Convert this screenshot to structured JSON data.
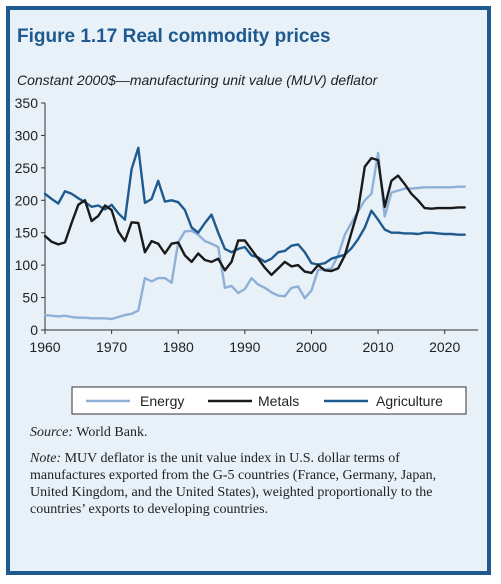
{
  "figure": {
    "title": "Figure 1.17  Real commodity prices",
    "subtitle": "Constant 2000$—manufacturing unit value (MUV) deflator",
    "source_label": "Source:",
    "source_text": " World Bank.",
    "note_label": "Note:",
    "note_text": " MUV deflator is the unit value index in U.S. dollar terms of manufactures exported from the G-5 countries (France, Germany, Japan, United Kingdom, and the United States), weighted proportionally to the countries’ exports to developing countries."
  },
  "chart_data": {
    "type": "line",
    "xlim": [
      1960,
      2025
    ],
    "ylim": [
      0,
      350
    ],
    "xticks": [
      1960,
      1970,
      1980,
      1990,
      2000,
      2010,
      2020
    ],
    "yticks": [
      0,
      50,
      100,
      150,
      200,
      250,
      300,
      350
    ],
    "grid": false,
    "legend": "bottom",
    "series": [
      {
        "name": "Energy",
        "color": "#8fb0d6",
        "points": [
          [
            1960,
            23
          ],
          [
            1961,
            22
          ],
          [
            1962,
            21
          ],
          [
            1963,
            22
          ],
          [
            1964,
            20
          ],
          [
            1965,
            19
          ],
          [
            1966,
            19
          ],
          [
            1967,
            18
          ],
          [
            1968,
            18
          ],
          [
            1969,
            18
          ],
          [
            1970,
            17
          ],
          [
            1971,
            20
          ],
          [
            1972,
            23
          ],
          [
            1973,
            25
          ],
          [
            1974,
            30
          ],
          [
            1975,
            80
          ],
          [
            1976,
            75
          ],
          [
            1977,
            80
          ],
          [
            1978,
            80
          ],
          [
            1979,
            73
          ],
          [
            1980,
            135
          ],
          [
            1981,
            152
          ],
          [
            1982,
            153
          ],
          [
            1983,
            147
          ],
          [
            1984,
            137
          ],
          [
            1985,
            133
          ],
          [
            1986,
            128
          ],
          [
            1987,
            65
          ],
          [
            1988,
            68
          ],
          [
            1989,
            57
          ],
          [
            1990,
            63
          ],
          [
            1991,
            80
          ],
          [
            1992,
            70
          ],
          [
            1993,
            65
          ],
          [
            1994,
            58
          ],
          [
            1995,
            53
          ],
          [
            1996,
            52
          ],
          [
            1997,
            65
          ],
          [
            1998,
            67
          ],
          [
            1999,
            49
          ],
          [
            2000,
            61
          ],
          [
            2001,
            93
          ],
          [
            2002,
            93
          ],
          [
            2003,
            95
          ],
          [
            2004,
            115
          ],
          [
            2005,
            147
          ],
          [
            2006,
            165
          ],
          [
            2007,
            183
          ],
          [
            2008,
            200
          ],
          [
            2009,
            210
          ],
          [
            2010,
            273
          ],
          [
            2011,
            175
          ],
          [
            2012,
            212
          ],
          [
            2013,
            215
          ],
          [
            2014,
            218
          ],
          [
            2015,
            218
          ],
          [
            2016,
            219
          ],
          [
            2017,
            220
          ],
          [
            2018,
            220
          ],
          [
            2019,
            220
          ],
          [
            2020,
            220
          ],
          [
            2021,
            220
          ],
          [
            2022,
            221
          ],
          [
            2023,
            221
          ]
        ]
      },
      {
        "name": "Metals",
        "color": "#1a1a1a",
        "points": [
          [
            1960,
            145
          ],
          [
            1961,
            136
          ],
          [
            1962,
            132
          ],
          [
            1963,
            135
          ],
          [
            1964,
            165
          ],
          [
            1965,
            193
          ],
          [
            1966,
            200
          ],
          [
            1967,
            168
          ],
          [
            1968,
            176
          ],
          [
            1969,
            192
          ],
          [
            1970,
            185
          ],
          [
            1971,
            152
          ],
          [
            1972,
            137
          ],
          [
            1973,
            166
          ],
          [
            1974,
            165
          ],
          [
            1975,
            120
          ],
          [
            1976,
            137
          ],
          [
            1977,
            133
          ],
          [
            1978,
            118
          ],
          [
            1979,
            133
          ],
          [
            1980,
            135
          ],
          [
            1981,
            115
          ],
          [
            1982,
            105
          ],
          [
            1983,
            118
          ],
          [
            1984,
            108
          ],
          [
            1985,
            105
          ],
          [
            1986,
            110
          ],
          [
            1987,
            92
          ],
          [
            1988,
            105
          ],
          [
            1989,
            138
          ],
          [
            1990,
            138
          ],
          [
            1991,
            124
          ],
          [
            1992,
            110
          ],
          [
            1993,
            96
          ],
          [
            1994,
            85
          ],
          [
            1995,
            95
          ],
          [
            1996,
            105
          ],
          [
            1997,
            98
          ],
          [
            1998,
            100
          ],
          [
            1999,
            90
          ],
          [
            2000,
            88
          ],
          [
            2001,
            100
          ],
          [
            2002,
            92
          ],
          [
            2003,
            91
          ],
          [
            2004,
            95
          ],
          [
            2005,
            115
          ],
          [
            2006,
            150
          ],
          [
            2007,
            185
          ],
          [
            2008,
            252
          ],
          [
            2009,
            265
          ],
          [
            2010,
            262
          ],
          [
            2011,
            190
          ],
          [
            2012,
            230
          ],
          [
            2013,
            238
          ],
          [
            2014,
            225
          ],
          [
            2015,
            210
          ],
          [
            2016,
            200
          ],
          [
            2017,
            188
          ],
          [
            2018,
            187
          ],
          [
            2019,
            188
          ],
          [
            2020,
            188
          ],
          [
            2021,
            188
          ],
          [
            2022,
            189
          ],
          [
            2023,
            189
          ]
        ]
      },
      {
        "name": "Agriculture",
        "color": "#1f5a8f",
        "points": [
          [
            1960,
            210
          ],
          [
            1961,
            202
          ],
          [
            1962,
            195
          ],
          [
            1963,
            214
          ],
          [
            1964,
            210
          ],
          [
            1965,
            203
          ],
          [
            1966,
            197
          ],
          [
            1967,
            190
          ],
          [
            1968,
            192
          ],
          [
            1969,
            186
          ],
          [
            1970,
            193
          ],
          [
            1971,
            180
          ],
          [
            1972,
            170
          ],
          [
            1973,
            248
          ],
          [
            1974,
            281
          ],
          [
            1975,
            196
          ],
          [
            1976,
            202
          ],
          [
            1977,
            230
          ],
          [
            1978,
            198
          ],
          [
            1979,
            200
          ],
          [
            1980,
            197
          ],
          [
            1981,
            185
          ],
          [
            1982,
            158
          ],
          [
            1983,
            150
          ],
          [
            1984,
            165
          ],
          [
            1985,
            178
          ],
          [
            1986,
            150
          ],
          [
            1987,
            125
          ],
          [
            1988,
            120
          ],
          [
            1989,
            125
          ],
          [
            1990,
            128
          ],
          [
            1991,
            115
          ],
          [
            1992,
            112
          ],
          [
            1993,
            105
          ],
          [
            1994,
            110
          ],
          [
            1995,
            120
          ],
          [
            1996,
            122
          ],
          [
            1997,
            130
          ],
          [
            1998,
            132
          ],
          [
            1999,
            120
          ],
          [
            2000,
            103
          ],
          [
            2001,
            101
          ],
          [
            2002,
            103
          ],
          [
            2003,
            110
          ],
          [
            2004,
            113
          ],
          [
            2005,
            116
          ],
          [
            2006,
            126
          ],
          [
            2007,
            140
          ],
          [
            2008,
            158
          ],
          [
            2009,
            184
          ],
          [
            2010,
            170
          ],
          [
            2011,
            155
          ],
          [
            2012,
            150
          ],
          [
            2013,
            150
          ],
          [
            2014,
            149
          ],
          [
            2015,
            149
          ],
          [
            2016,
            148
          ],
          [
            2017,
            150
          ],
          [
            2018,
            150
          ],
          [
            2019,
            149
          ],
          [
            2020,
            148
          ],
          [
            2021,
            148
          ],
          [
            2022,
            147
          ],
          [
            2023,
            147
          ]
        ]
      }
    ]
  }
}
